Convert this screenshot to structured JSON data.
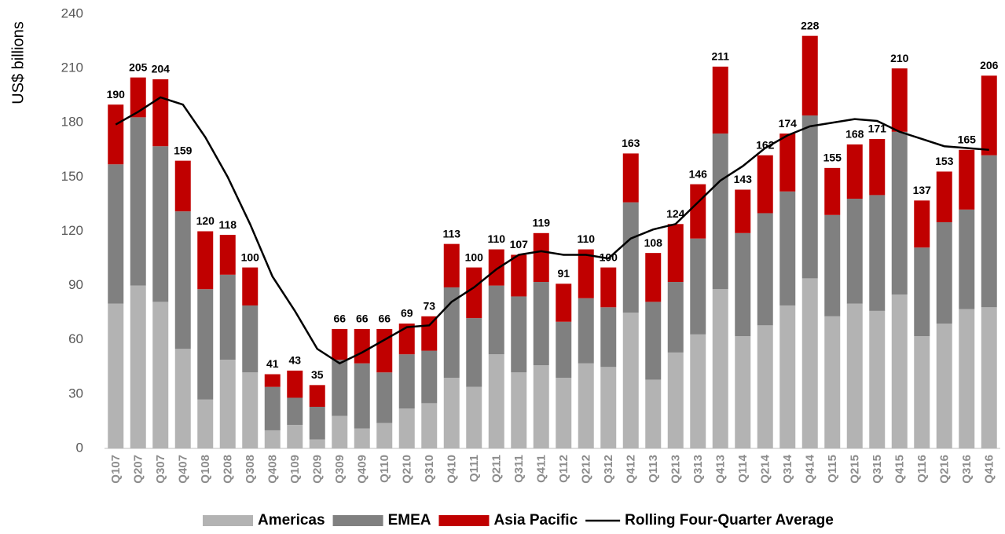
{
  "chart_data": {
    "type": "bar",
    "stacked": true,
    "y_label": "US$ billions",
    "categories": [
      "Q107",
      "Q207",
      "Q307",
      "Q407",
      "Q108",
      "Q208",
      "Q308",
      "Q408",
      "Q109",
      "Q209",
      "Q309",
      "Q409",
      "Q110",
      "Q210",
      "Q310",
      "Q410",
      "Q111",
      "Q211",
      "Q311",
      "Q411",
      "Q112",
      "Q212",
      "Q312",
      "Q412",
      "Q113",
      "Q213",
      "Q313",
      "Q413",
      "Q114",
      "Q214",
      "Q314",
      "Q414",
      "Q115",
      "Q215",
      "Q315",
      "Q415",
      "Q116",
      "Q216",
      "Q316",
      "Q416"
    ],
    "series": [
      {
        "name": "Americas",
        "type": "bar",
        "color": "#b3b3b3",
        "values": [
          80,
          90,
          81,
          55,
          27,
          49,
          42,
          10,
          13,
          5,
          18,
          11,
          14,
          22,
          25,
          39,
          34,
          52,
          42,
          46,
          39,
          47,
          45,
          75,
          38,
          53,
          63,
          88,
          62,
          68,
          79,
          94,
          73,
          80,
          76,
          85,
          62,
          69,
          77,
          78
        ]
      },
      {
        "name": "EMEA",
        "type": "bar",
        "color": "#808080",
        "values": [
          77,
          93,
          86,
          76,
          61,
          47,
          37,
          24,
          15,
          18,
          31,
          36,
          28,
          30,
          29,
          50,
          38,
          38,
          42,
          46,
          31,
          36,
          33,
          61,
          43,
          39,
          53,
          86,
          57,
          62,
          63,
          90,
          56,
          58,
          64,
          90,
          49,
          56,
          55,
          84
        ]
      },
      {
        "name": "Asia Pacific",
        "type": "bar",
        "color": "#c00000",
        "values": [
          33,
          22,
          37,
          28,
          32,
          22,
          21,
          7,
          15,
          12,
          17,
          19,
          24,
          17,
          19,
          24,
          28,
          20,
          23,
          27,
          21,
          27,
          22,
          27,
          27,
          32,
          30,
          37,
          24,
          32,
          32,
          44,
          26,
          30,
          31,
          35,
          26,
          28,
          33,
          44
        ]
      },
      {
        "name": "Rolling Four-Quarter Average",
        "type": "line",
        "color": "#000000",
        "values": [
          179,
          186,
          194,
          190,
          172,
          150,
          124,
          95,
          76,
          55,
          47,
          53,
          60,
          67,
          68,
          81,
          89,
          99,
          107,
          109,
          107,
          107,
          105,
          116,
          121,
          124,
          136,
          148,
          156,
          166,
          173,
          178,
          180,
          182,
          181,
          175,
          171,
          167,
          166,
          165
        ]
      }
    ],
    "totals": [
      190,
      205,
      204,
      159,
      120,
      118,
      100,
      41,
      43,
      35,
      66,
      66,
      66,
      69,
      73,
      113,
      100,
      110,
      107,
      119,
      91,
      110,
      100,
      163,
      108,
      124,
      146,
      211,
      143,
      162,
      174,
      228,
      155,
      168,
      171,
      210,
      137,
      153,
      165,
      206
    ],
    "ylim": [
      0,
      240
    ],
    "yticks": [
      0,
      30,
      60,
      90,
      120,
      150,
      180,
      210,
      240
    ],
    "grid": false,
    "legend": "bottom"
  }
}
